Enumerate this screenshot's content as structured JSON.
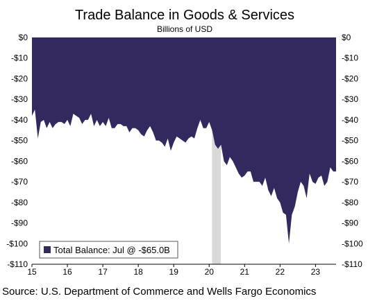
{
  "chart_data": {
    "type": "area",
    "title": "Trade Balance in Goods & Services",
    "subtitle": "Billions of USD",
    "xlabel": "",
    "ylabel": "",
    "xlim": [
      2015.0,
      2023.58
    ],
    "ylim": [
      -110,
      0
    ],
    "y_ticks": [
      "$0",
      "-$10",
      "-$20",
      "-$30",
      "-$40",
      "-$50",
      "-$60",
      "-$70",
      "-$80",
      "-$90",
      "-$100",
      "-$110"
    ],
    "y_tick_values": [
      0,
      -10,
      -20,
      -30,
      -40,
      -50,
      -60,
      -70,
      -80,
      -90,
      -100,
      -110
    ],
    "x_ticks": [
      "15",
      "16",
      "17",
      "18",
      "19",
      "20",
      "21",
      "22",
      "23"
    ],
    "x_tick_values": [
      2015,
      2016,
      2017,
      2018,
      2019,
      2020,
      2021,
      2022,
      2023
    ],
    "legend": {
      "label": "Total Balance: Jul @ -$65.0B",
      "position": "bottom-left",
      "color": "#33295f"
    },
    "area_color": "#33295f",
    "recession_color": "#d9d9d9",
    "recession_span": [
      2020.08,
      2020.33
    ],
    "series": [
      {
        "name": "Total Balance",
        "x": [
          2015.0,
          2015.083,
          2015.167,
          2015.25,
          2015.333,
          2015.417,
          2015.5,
          2015.583,
          2015.667,
          2015.75,
          2015.833,
          2015.917,
          2016.0,
          2016.083,
          2016.167,
          2016.25,
          2016.333,
          2016.417,
          2016.5,
          2016.583,
          2016.667,
          2016.75,
          2016.833,
          2016.917,
          2017.0,
          2017.083,
          2017.167,
          2017.25,
          2017.333,
          2017.417,
          2017.5,
          2017.583,
          2017.667,
          2017.75,
          2017.833,
          2017.917,
          2018.0,
          2018.083,
          2018.167,
          2018.25,
          2018.333,
          2018.417,
          2018.5,
          2018.583,
          2018.667,
          2018.75,
          2018.833,
          2018.917,
          2019.0,
          2019.083,
          2019.167,
          2019.25,
          2019.333,
          2019.417,
          2019.5,
          2019.583,
          2019.667,
          2019.75,
          2019.833,
          2019.917,
          2020.0,
          2020.083,
          2020.167,
          2020.25,
          2020.333,
          2020.417,
          2020.5,
          2020.583,
          2020.667,
          2020.75,
          2020.833,
          2020.917,
          2021.0,
          2021.083,
          2021.167,
          2021.25,
          2021.333,
          2021.417,
          2021.5,
          2021.583,
          2021.667,
          2021.75,
          2021.833,
          2021.917,
          2022.0,
          2022.083,
          2022.167,
          2022.25,
          2022.333,
          2022.417,
          2022.5,
          2022.583,
          2022.667,
          2022.75,
          2022.833,
          2022.917,
          2023.0,
          2023.083,
          2023.167,
          2023.25,
          2023.333,
          2023.417,
          2023.5
        ],
        "values": [
          -38,
          -35,
          -49,
          -41,
          -40,
          -44,
          -41,
          -44,
          -42,
          -41,
          -41,
          -42,
          -40,
          -43,
          -37,
          -38,
          -39,
          -42,
          -40,
          -40,
          -37,
          -43,
          -40,
          -43,
          -41,
          -43,
          -39,
          -44,
          -44,
          -42,
          -42,
          -43,
          -43,
          -46,
          -44,
          -44,
          -45,
          -47,
          -48,
          -45,
          -43,
          -46,
          -50,
          -50,
          -51,
          -53,
          -49,
          -55,
          -51,
          -48,
          -49,
          -50,
          -51,
          -49,
          -48,
          -49,
          -44,
          -40,
          -44,
          -44,
          -41,
          -45,
          -52,
          -54,
          -52,
          -60,
          -62,
          -58,
          -60,
          -63,
          -66,
          -68,
          -67,
          -65,
          -65,
          -70,
          -70,
          -70,
          -72,
          -68,
          -74,
          -77,
          -73,
          -78,
          -80,
          -85,
          -86,
          -100,
          -86,
          -82,
          -75,
          -70,
          -72,
          -78,
          -66,
          -70,
          -71,
          -68,
          -67,
          -72,
          -70,
          -63,
          -65
        ]
      }
    ]
  },
  "source": "Source: U.S. Department of Commerce and Wells Fargo Economics"
}
